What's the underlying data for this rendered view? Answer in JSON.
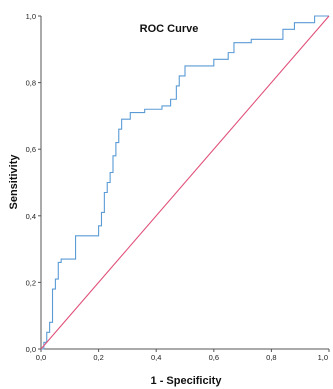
{
  "chart_data": {
    "type": "line",
    "title": "ROC Curve",
    "xlabel": "1 - Specificity",
    "ylabel": "Sensitivity",
    "xlim": [
      0,
      1
    ],
    "ylim": [
      0,
      1
    ],
    "xticks": [
      "0,0",
      "0,2",
      "0,4",
      "0,6",
      "0,8",
      "1,0"
    ],
    "yticks": [
      "0,0",
      "0,2",
      "0,4",
      "0,6",
      "0,8",
      "1,0"
    ],
    "grid": false,
    "colors": {
      "roc": "#5b9bd5",
      "reference": "#e0507a"
    },
    "series": [
      {
        "x": [
          0.0,
          0.01,
          0.01,
          0.02,
          0.02,
          0.03,
          0.03,
          0.04,
          0.04,
          0.05,
          0.05,
          0.06,
          0.06,
          0.07,
          0.07,
          0.12,
          0.12,
          0.2,
          0.2,
          0.21,
          0.21,
          0.22,
          0.22,
          0.23,
          0.23,
          0.24,
          0.24,
          0.25,
          0.25,
          0.26,
          0.26,
          0.27,
          0.27,
          0.28,
          0.28,
          0.31,
          0.31,
          0.36,
          0.36,
          0.42,
          0.42,
          0.45,
          0.45,
          0.47,
          0.47,
          0.48,
          0.48,
          0.5,
          0.5,
          0.6,
          0.6,
          0.65,
          0.65,
          0.67,
          0.67,
          0.71,
          0.71,
          0.73,
          0.73,
          0.84,
          0.84,
          0.88,
          0.88,
          0.95,
          0.95,
          1.0
        ],
        "y": [
          0.0,
          0.0,
          0.02,
          0.02,
          0.05,
          0.05,
          0.08,
          0.08,
          0.18,
          0.18,
          0.21,
          0.21,
          0.26,
          0.26,
          0.27,
          0.27,
          0.34,
          0.34,
          0.37,
          0.37,
          0.41,
          0.41,
          0.47,
          0.47,
          0.5,
          0.5,
          0.53,
          0.53,
          0.58,
          0.58,
          0.62,
          0.62,
          0.66,
          0.66,
          0.69,
          0.69,
          0.71,
          0.71,
          0.72,
          0.72,
          0.73,
          0.73,
          0.75,
          0.75,
          0.79,
          0.79,
          0.82,
          0.82,
          0.85,
          0.85,
          0.87,
          0.87,
          0.89,
          0.89,
          0.92,
          0.92,
          0.92,
          0.92,
          0.93,
          0.93,
          0.96,
          0.96,
          0.98,
          0.98,
          1.0,
          1.0
        ]
      },
      {
        "x": [
          0,
          1
        ],
        "y": [
          0,
          1
        ]
      }
    ]
  }
}
